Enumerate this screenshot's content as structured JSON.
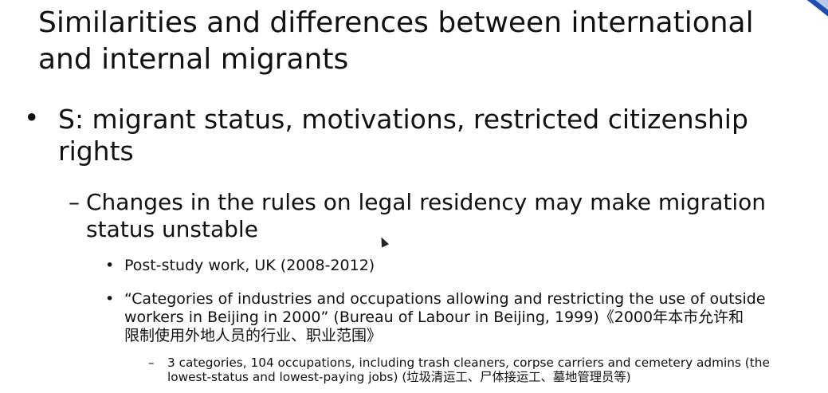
{
  "slide": {
    "title_line1": "Similarities and differences between international",
    "title_line2": "and internal migrants",
    "bullet_char": "•",
    "dash_char": "–",
    "level1": {
      "line1": "S: migrant status, motivations, restricted citizenship",
      "line2": "rights"
    },
    "level2": {
      "line1": "Changes in the rules on legal residency may make migration",
      "line2": "status unstable"
    },
    "level3_item1": "Post-study work, UK (2008-2012)",
    "level3_item2": {
      "line1": "“Categories of industries and occupations allowing and restricting the use of  outside",
      "line2": "workers in Beijing in 2000” (Bureau of Labour in Beijing, 1999)《2000年本市允许和",
      "line3": "限制使用外地人员的行业、职业范围》"
    },
    "level4": {
      "line1": "3 categories, 104 occupations, including trash cleaners, corpse carriers and cemetery admins (the",
      "line2": "lowest-status and lowest-paying jobs) (垃圾清运工、尸体接运工、墓地管理员等)"
    }
  },
  "colors": {
    "accent": "#2b63c9",
    "text": "#111111",
    "background": "#ffffff"
  }
}
